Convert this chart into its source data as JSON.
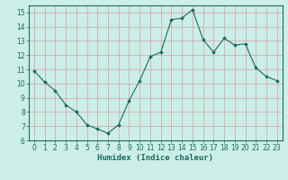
{
  "xlabel": "Humidex (Indice chaleur)",
  "x": [
    0,
    1,
    2,
    3,
    4,
    5,
    6,
    7,
    8,
    9,
    10,
    11,
    12,
    13,
    14,
    15,
    16,
    17,
    18,
    19,
    20,
    21,
    22,
    23
  ],
  "y": [
    10.9,
    10.1,
    9.5,
    8.5,
    8.0,
    7.1,
    6.8,
    6.5,
    7.1,
    8.8,
    10.2,
    11.9,
    12.2,
    14.5,
    14.6,
    15.2,
    13.1,
    12.2,
    13.2,
    12.7,
    12.8,
    11.1,
    10.5,
    10.2
  ],
  "line_color": "#1a6b5a",
  "marker": "D",
  "marker_size": 1.8,
  "bg_color": "#cceee8",
  "grid_color_major": "#d4a0a0",
  "grid_color_minor": "#d4a0a0",
  "ylim": [
    6,
    15.5
  ],
  "yticks": [
    6,
    7,
    8,
    9,
    10,
    11,
    12,
    13,
    14,
    15
  ],
  "xlim": [
    -0.5,
    23.5
  ],
  "xticks": [
    0,
    1,
    2,
    3,
    4,
    5,
    6,
    7,
    8,
    9,
    10,
    11,
    12,
    13,
    14,
    15,
    16,
    17,
    18,
    19,
    20,
    21,
    22,
    23
  ],
  "tick_fontsize": 5.5,
  "xlabel_fontsize": 6.5
}
